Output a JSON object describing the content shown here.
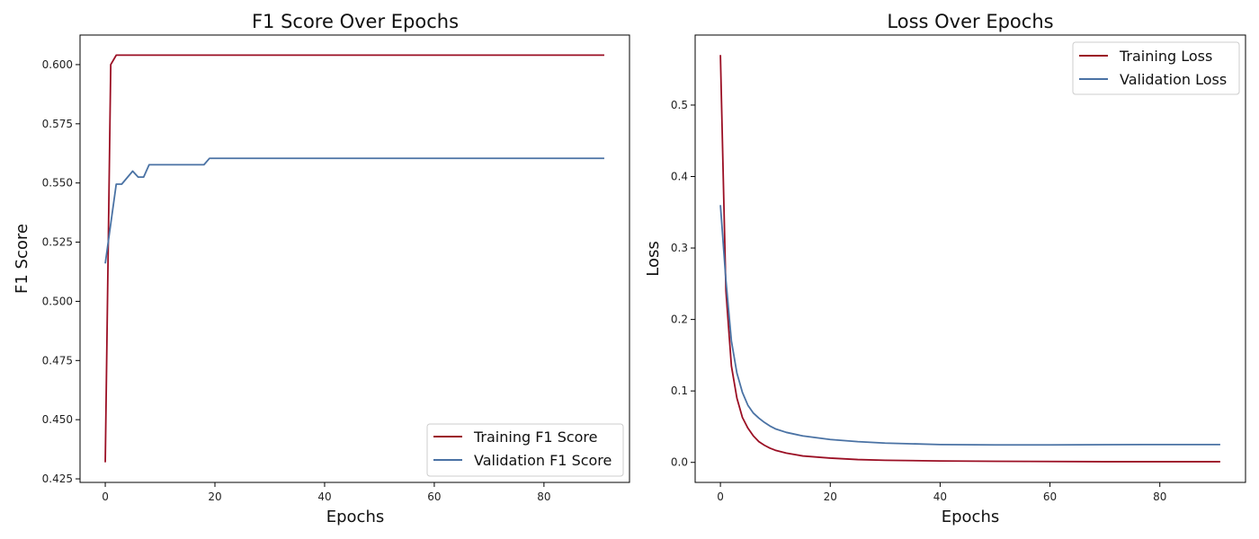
{
  "colors": {
    "training": "#9b0f24",
    "validation": "#4a72a4",
    "axis": "#000000",
    "legend_border": "#cccccc"
  },
  "chart_data": [
    {
      "type": "line",
      "title": "F1 Score Over Epochs",
      "xlabel": "Epochs",
      "ylabel": "F1 Score",
      "xlim": [
        -4.6,
        95.6
      ],
      "ylim": [
        0.4235,
        0.6125
      ],
      "xticks": [
        0,
        20,
        40,
        60,
        80
      ],
      "yticks": [
        0.425,
        0.45,
        0.475,
        0.5,
        0.525,
        0.55,
        0.575,
        0.6
      ],
      "ytick_labels": [
        "0.425",
        "0.450",
        "0.475",
        "0.500",
        "0.525",
        "0.550",
        "0.575",
        "0.600"
      ],
      "grid": false,
      "legend": "bottom-right",
      "series": [
        {
          "name": "Training F1 Score",
          "color_key": "training",
          "points": [
            [
              0,
              0.432
            ],
            [
              1,
              0.6
            ],
            [
              2,
              0.604
            ],
            [
              91,
              0.604
            ]
          ]
        },
        {
          "name": "Validation F1 Score",
          "color_key": "validation",
          "points": [
            [
              0,
              0.516
            ],
            [
              2,
              0.5495
            ],
            [
              3,
              0.5495
            ],
            [
              5,
              0.555
            ],
            [
              6,
              0.5525
            ],
            [
              7,
              0.5525
            ],
            [
              8,
              0.5577
            ],
            [
              18,
              0.5577
            ],
            [
              19,
              0.5604
            ],
            [
              91,
              0.5604
            ]
          ]
        }
      ]
    },
    {
      "type": "line",
      "title": "Loss Over Epochs",
      "xlabel": "Epochs",
      "ylabel": "Loss",
      "xlim": [
        -4.6,
        95.6
      ],
      "ylim": [
        -0.028,
        0.598
      ],
      "xticks": [
        0,
        20,
        40,
        60,
        80
      ],
      "yticks": [
        0.0,
        0.1,
        0.2,
        0.3,
        0.4,
        0.5
      ],
      "ytick_labels": [
        "0.0",
        "0.1",
        "0.2",
        "0.3",
        "0.4",
        "0.5"
      ],
      "grid": false,
      "legend": "top-right",
      "series": [
        {
          "name": "Training Loss",
          "color_key": "training",
          "points": [
            [
              0,
              0.57
            ],
            [
              1,
              0.24
            ],
            [
              2,
              0.135
            ],
            [
              3,
              0.09
            ],
            [
              4,
              0.063
            ],
            [
              5,
              0.048
            ],
            [
              6,
              0.037
            ],
            [
              7,
              0.029
            ],
            [
              8,
              0.024
            ],
            [
              9,
              0.02
            ],
            [
              10,
              0.017
            ],
            [
              12,
              0.013
            ],
            [
              15,
              0.009
            ],
            [
              20,
              0.006
            ],
            [
              25,
              0.004
            ],
            [
              30,
              0.003
            ],
            [
              40,
              0.002
            ],
            [
              50,
              0.0015
            ],
            [
              70,
              0.001
            ],
            [
              91,
              0.001
            ]
          ]
        },
        {
          "name": "Validation Loss",
          "color_key": "validation",
          "points": [
            [
              0,
              0.36
            ],
            [
              1,
              0.255
            ],
            [
              2,
              0.17
            ],
            [
              3,
              0.125
            ],
            [
              4,
              0.098
            ],
            [
              5,
              0.08
            ],
            [
              6,
              0.069
            ],
            [
              7,
              0.062
            ],
            [
              8,
              0.056
            ],
            [
              9,
              0.051
            ],
            [
              10,
              0.047
            ],
            [
              12,
              0.042
            ],
            [
              15,
              0.037
            ],
            [
              20,
              0.032
            ],
            [
              25,
              0.029
            ],
            [
              30,
              0.027
            ],
            [
              40,
              0.025
            ],
            [
              50,
              0.0245
            ],
            [
              60,
              0.0245
            ],
            [
              70,
              0.0248
            ],
            [
              80,
              0.025
            ],
            [
              91,
              0.025
            ]
          ]
        }
      ]
    }
  ]
}
